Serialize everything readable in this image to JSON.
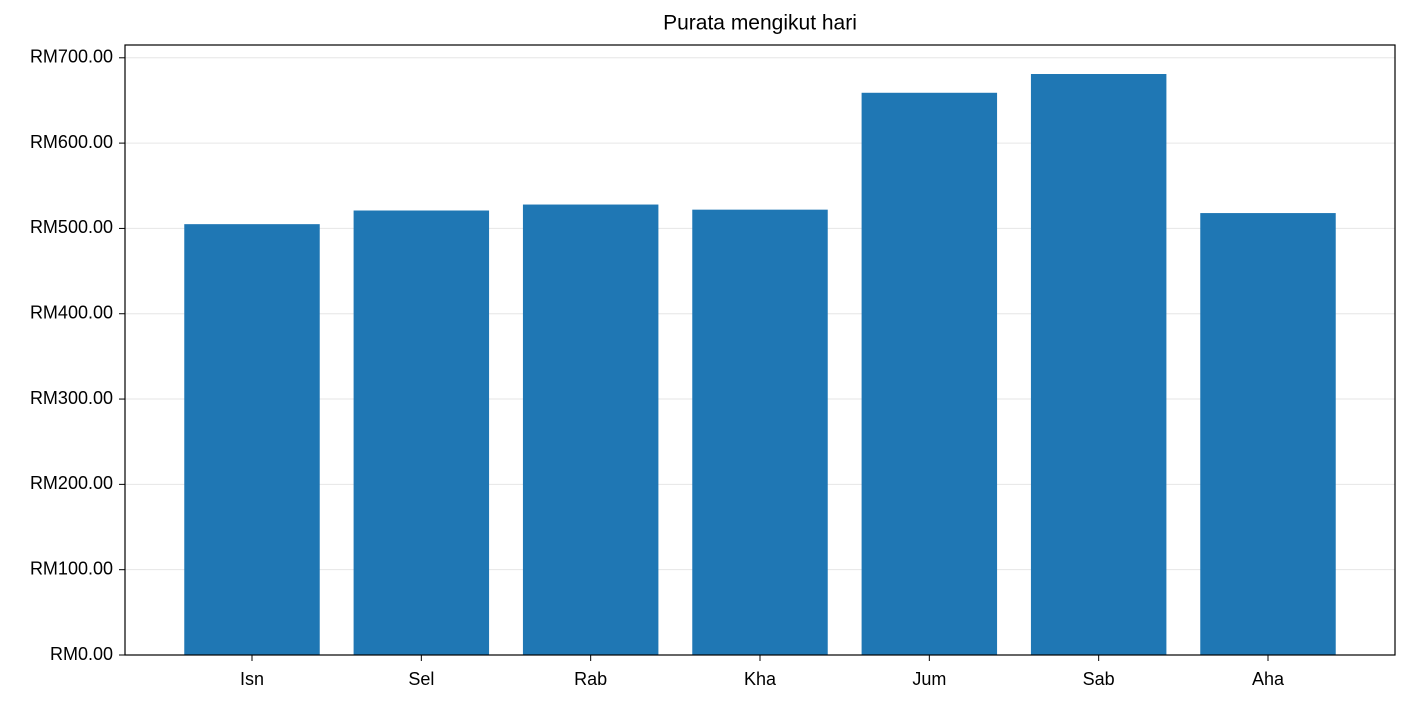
{
  "chart_data": {
    "type": "bar",
    "title": "Purata mengikut hari",
    "categories": [
      "Isn",
      "Sel",
      "Rab",
      "Kha",
      "Jum",
      "Sab",
      "Aha"
    ],
    "values": [
      505,
      521,
      528,
      522,
      659,
      681,
      518
    ],
    "color": "#1f77b4",
    "ylim": [
      0,
      715
    ],
    "yticks": [
      {
        "value": 0,
        "label": "RM0.00"
      },
      {
        "value": 100,
        "label": "RM100.00"
      },
      {
        "value": 200,
        "label": "RM200.00"
      },
      {
        "value": 300,
        "label": "RM300.00"
      },
      {
        "value": 400,
        "label": "RM400.00"
      },
      {
        "value": 500,
        "label": "RM500.00"
      },
      {
        "value": 600,
        "label": "RM600.00"
      },
      {
        "value": 700,
        "label": "RM700.00"
      }
    ],
    "grid": true
  }
}
